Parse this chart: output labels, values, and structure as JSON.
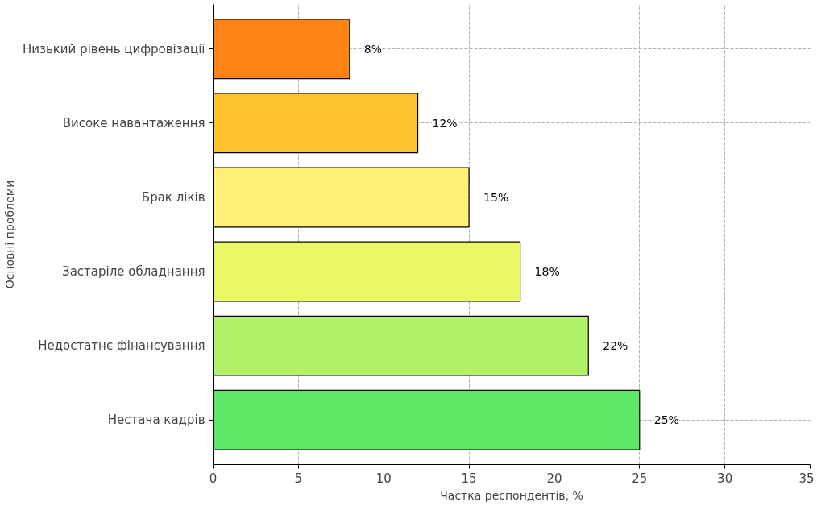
{
  "chart_data": {
    "type": "bar",
    "orientation": "horizontal",
    "xlabel": "Частка респондентів, %",
    "ylabel": "Основні проблеми",
    "categories": [
      "Низький рівень цифровізації",
      "Високе навантаження",
      "Брак ліків",
      "Застаріле обладнання",
      "Недостатнє фінансування",
      "Нестача кадрів"
    ],
    "values": [
      8,
      12,
      15,
      18,
      22,
      25
    ],
    "colors": [
      "#ff8418",
      "#ffc030",
      "#fff07a",
      "#eaf866",
      "#b2f266",
      "#5fe866"
    ],
    "value_labels": [
      "8%",
      "12%",
      "15%",
      "18%",
      "22%",
      "25%"
    ],
    "xlim": [
      0,
      35
    ],
    "xticks": [
      0,
      5,
      10,
      15,
      20,
      25,
      30,
      35
    ],
    "grid": true
  }
}
